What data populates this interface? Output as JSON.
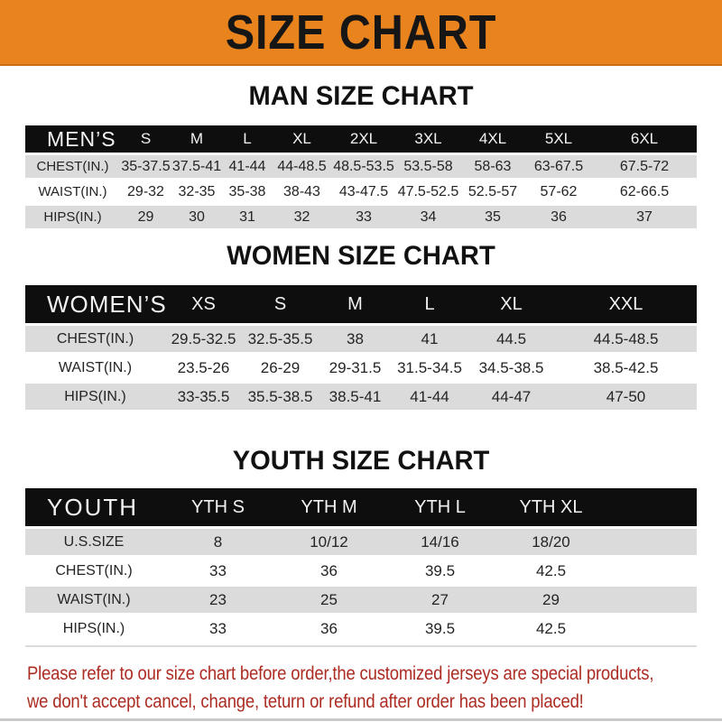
{
  "banner": {
    "title": "SIZE CHART"
  },
  "colors": {
    "banner_orange": "#E8831D",
    "header_black": "#0E0E0E",
    "row_gray": "#DBDBDB",
    "disclaimer_red": "#AC2C22"
  },
  "chart_data": [
    {
      "type": "table",
      "title": "MAN SIZE CHART",
      "header": {
        "label": "MEN’S",
        "sizes": [
          "S",
          "M",
          "L",
          "XL",
          "2XL",
          "3XL",
          "4XL",
          "5XL",
          "6XL"
        ]
      },
      "rows": [
        {
          "label": "CHEST(IN.)",
          "values": [
            "35-37.5",
            "37.5-41",
            "41-44",
            "44-48.5",
            "48.5-53.5",
            "53.5-58",
            "58-63",
            "63-67.5",
            "67.5-72"
          ]
        },
        {
          "label": "WAIST(IN.)",
          "values": [
            "29-32",
            "32-35",
            "35-38",
            "38-43",
            "43-47.5",
            "47.5-52.5",
            "52.5-57",
            "57-62",
            "62-66.5"
          ]
        },
        {
          "label": "HIPS(IN.)",
          "values": [
            "29",
            "30",
            "31",
            "32",
            "33",
            "34",
            "35",
            "36",
            "37"
          ]
        }
      ]
    },
    {
      "type": "table",
      "title": "WOMEN SIZE CHART",
      "header": {
        "label": "WOMEN’S",
        "sizes": [
          "XS",
          "S",
          "M",
          "L",
          "XL",
          "XXL"
        ]
      },
      "rows": [
        {
          "label": "CHEST(IN.)",
          "values": [
            "29.5-32.5",
            "32.5-35.5",
            "38",
            "41",
            "44.5",
            "44.5-48.5"
          ]
        },
        {
          "label": "WAIST(IN.)",
          "values": [
            "23.5-26",
            "26-29",
            "29-31.5",
            "31.5-34.5",
            "34.5-38.5",
            "38.5-42.5"
          ]
        },
        {
          "label": "HIPS(IN.)",
          "values": [
            "33-35.5",
            "35.5-38.5",
            "38.5-41",
            "41-44",
            "44-47",
            "47-50"
          ]
        }
      ]
    },
    {
      "type": "table",
      "title": "YOUTH SIZE CHART",
      "header": {
        "label": "YOUTH",
        "sizes": [
          "YTH S",
          "YTH M",
          "YTH L",
          "YTH XL"
        ]
      },
      "rows": [
        {
          "label": "U.S.SIZE",
          "values": [
            "8",
            "10/12",
            "14/16",
            "18/20"
          ]
        },
        {
          "label": "CHEST(IN.)",
          "values": [
            "33",
            "36",
            "39.5",
            "42.5"
          ]
        },
        {
          "label": "WAIST(IN.)",
          "values": [
            "23",
            "25",
            "27",
            "29"
          ]
        },
        {
          "label": "HIPS(IN.)",
          "values": [
            "33",
            "36",
            "39.5",
            "42.5"
          ]
        }
      ]
    }
  ],
  "disclaimer": {
    "line1": "Please refer to our size chart before order,the customized jerseys are special products,",
    "line2": "we don't accept cancel, change, teturn or refund after order has been placed!"
  }
}
